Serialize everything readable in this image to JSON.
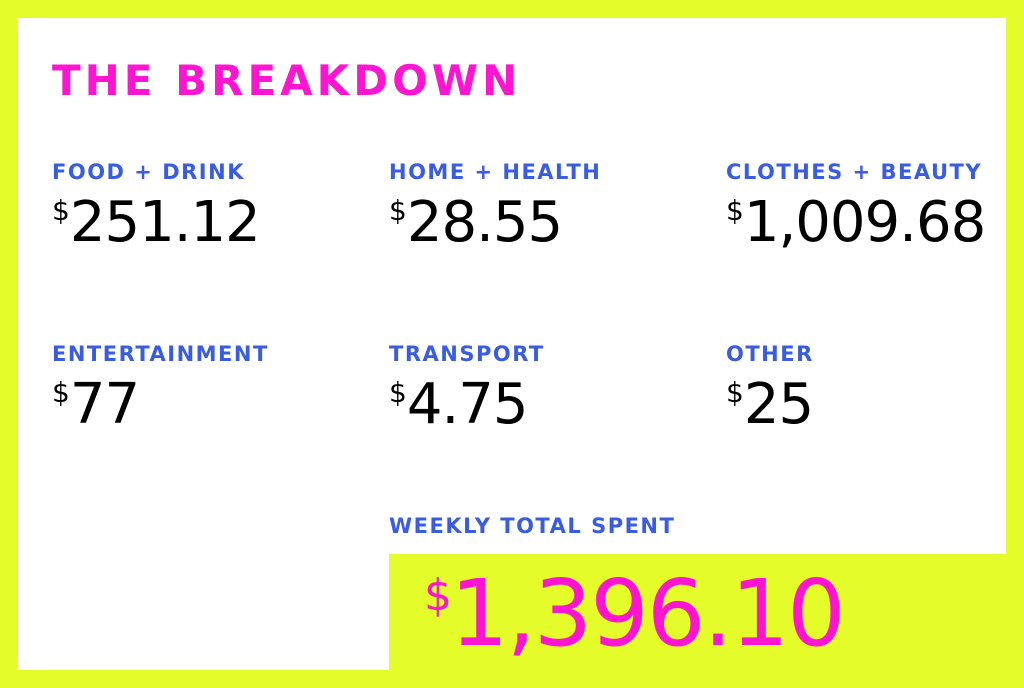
{
  "title": "THE BREAKDOWN",
  "currency_symbol": "$",
  "categories": [
    {
      "label": "FOOD + DRINK",
      "amount": "251.12"
    },
    {
      "label": "HOME + HEALTH",
      "amount": "28.55"
    },
    {
      "label": "CLOTHES + BEAUTY",
      "amount": "1,009.68"
    },
    {
      "label": "ENTERTAINMENT",
      "amount": "77"
    },
    {
      "label": "TRANSPORT",
      "amount": "4.75"
    },
    {
      "label": "OTHER",
      "amount": "25"
    }
  ],
  "total": {
    "label": "WEEKLY TOTAL SPENT",
    "amount": "1,396.10"
  },
  "colors": {
    "background": "#e4fc2a",
    "accent": "#ff14d2",
    "label": "#3a5ce0"
  }
}
